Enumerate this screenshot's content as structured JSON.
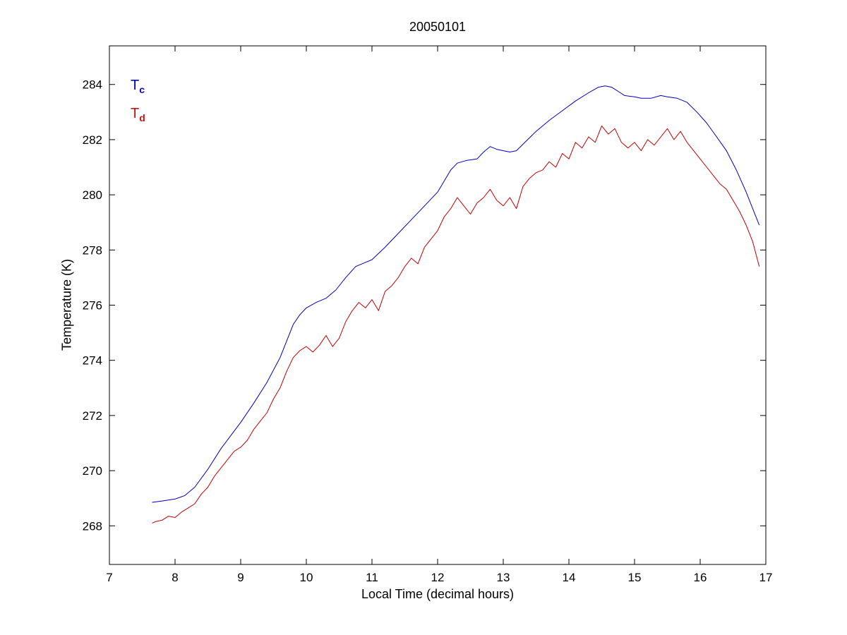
{
  "figure": {
    "title": "20050101",
    "xlabel": "Local Time (decimal hours)",
    "ylabel": "Temperature (K)"
  },
  "legend": {
    "items": [
      {
        "label": "T",
        "sub": "c",
        "color": "#0000D0"
      },
      {
        "label": "T",
        "sub": "d",
        "color": "#CC1111"
      }
    ]
  },
  "chart_data": {
    "type": "line",
    "title": "20050101",
    "xlabel": "Local Time (decimal hours)",
    "ylabel": "Temperature (K)",
    "xlim": [
      7,
      17
    ],
    "ylim": [
      266.6,
      285.4
    ],
    "x_ticks": [
      7,
      8,
      9,
      10,
      11,
      12,
      13,
      14,
      15,
      16,
      17
    ],
    "y_ticks": [
      268,
      270,
      272,
      274,
      276,
      278,
      280,
      282,
      284
    ],
    "grid": false,
    "legend_position": "top-left annotations inside axes",
    "series": [
      {
        "name": "Tc",
        "color": "#0000C0",
        "x": [
          7.65,
          7.8,
          8.0,
          8.15,
          8.3,
          8.5,
          8.7,
          9.0,
          9.2,
          9.4,
          9.6,
          9.8,
          9.9,
          10.0,
          10.15,
          10.3,
          10.45,
          10.6,
          10.75,
          10.9,
          11.0,
          11.2,
          11.4,
          11.6,
          11.8,
          12.0,
          12.1,
          12.2,
          12.3,
          12.45,
          12.6,
          12.7,
          12.8,
          12.9,
          13.0,
          13.1,
          13.2,
          13.35,
          13.5,
          13.7,
          13.9,
          14.1,
          14.3,
          14.45,
          14.55,
          14.65,
          14.75,
          14.85,
          15.0,
          15.1,
          15.25,
          15.4,
          15.5,
          15.65,
          15.8,
          15.95,
          16.1,
          16.25,
          16.4,
          16.55,
          16.7,
          16.8,
          16.9
        ],
        "y": [
          268.85,
          268.9,
          268.97,
          269.1,
          269.4,
          270.05,
          270.8,
          271.75,
          272.45,
          273.2,
          274.1,
          275.3,
          275.65,
          275.9,
          276.1,
          276.25,
          276.55,
          277.0,
          277.4,
          277.55,
          277.65,
          278.1,
          278.6,
          279.1,
          279.6,
          280.1,
          280.5,
          280.9,
          281.15,
          281.25,
          281.3,
          281.55,
          281.75,
          281.65,
          281.6,
          281.55,
          281.6,
          281.95,
          282.3,
          282.7,
          283.05,
          283.4,
          283.7,
          283.9,
          283.95,
          283.9,
          283.75,
          283.6,
          283.55,
          283.5,
          283.5,
          283.6,
          283.55,
          283.5,
          283.35,
          283.0,
          282.6,
          282.1,
          281.6,
          280.9,
          280.1,
          279.5,
          278.9
        ]
      },
      {
        "name": "Td",
        "color": "#C00000",
        "x": [
          7.65,
          7.7,
          7.8,
          7.9,
          8.0,
          8.1,
          8.2,
          8.3,
          8.4,
          8.5,
          8.6,
          8.7,
          8.8,
          8.9,
          9.0,
          9.1,
          9.2,
          9.3,
          9.4,
          9.5,
          9.6,
          9.7,
          9.8,
          9.9,
          10.0,
          10.1,
          10.2,
          10.3,
          10.4,
          10.5,
          10.6,
          10.7,
          10.8,
          10.9,
          11.0,
          11.1,
          11.2,
          11.3,
          11.4,
          11.5,
          11.6,
          11.7,
          11.8,
          11.9,
          12.0,
          12.1,
          12.2,
          12.3,
          12.4,
          12.5,
          12.6,
          12.7,
          12.8,
          12.9,
          13.0,
          13.1,
          13.2,
          13.3,
          13.4,
          13.5,
          13.6,
          13.7,
          13.8,
          13.9,
          14.0,
          14.1,
          14.2,
          14.3,
          14.4,
          14.5,
          14.6,
          14.7,
          14.8,
          14.9,
          15.0,
          15.1,
          15.2,
          15.3,
          15.4,
          15.5,
          15.6,
          15.7,
          15.8,
          15.9,
          16.0,
          16.1,
          16.2,
          16.3,
          16.4,
          16.5,
          16.6,
          16.7,
          16.8,
          16.9
        ],
        "y": [
          268.1,
          268.15,
          268.2,
          268.35,
          268.3,
          268.5,
          268.65,
          268.8,
          269.15,
          269.4,
          269.8,
          270.1,
          270.4,
          270.7,
          270.85,
          271.1,
          271.5,
          271.8,
          272.1,
          272.6,
          273.0,
          273.6,
          274.1,
          274.35,
          274.5,
          274.3,
          274.55,
          274.9,
          274.5,
          274.8,
          275.4,
          275.8,
          276.1,
          275.9,
          276.2,
          275.8,
          276.5,
          276.7,
          277.0,
          277.4,
          277.7,
          277.5,
          278.1,
          278.4,
          278.7,
          279.2,
          279.5,
          279.9,
          279.6,
          279.3,
          279.7,
          279.9,
          280.2,
          279.8,
          279.6,
          279.9,
          279.5,
          280.3,
          280.6,
          280.8,
          280.9,
          281.2,
          281.0,
          281.5,
          281.3,
          281.9,
          281.7,
          282.1,
          281.9,
          282.5,
          282.2,
          282.4,
          281.9,
          281.7,
          281.9,
          281.6,
          282.0,
          281.8,
          282.1,
          282.4,
          282.0,
          282.3,
          281.9,
          281.6,
          281.3,
          281.0,
          280.7,
          280.4,
          280.2,
          279.8,
          279.4,
          278.9,
          278.3,
          277.4
        ]
      }
    ]
  }
}
